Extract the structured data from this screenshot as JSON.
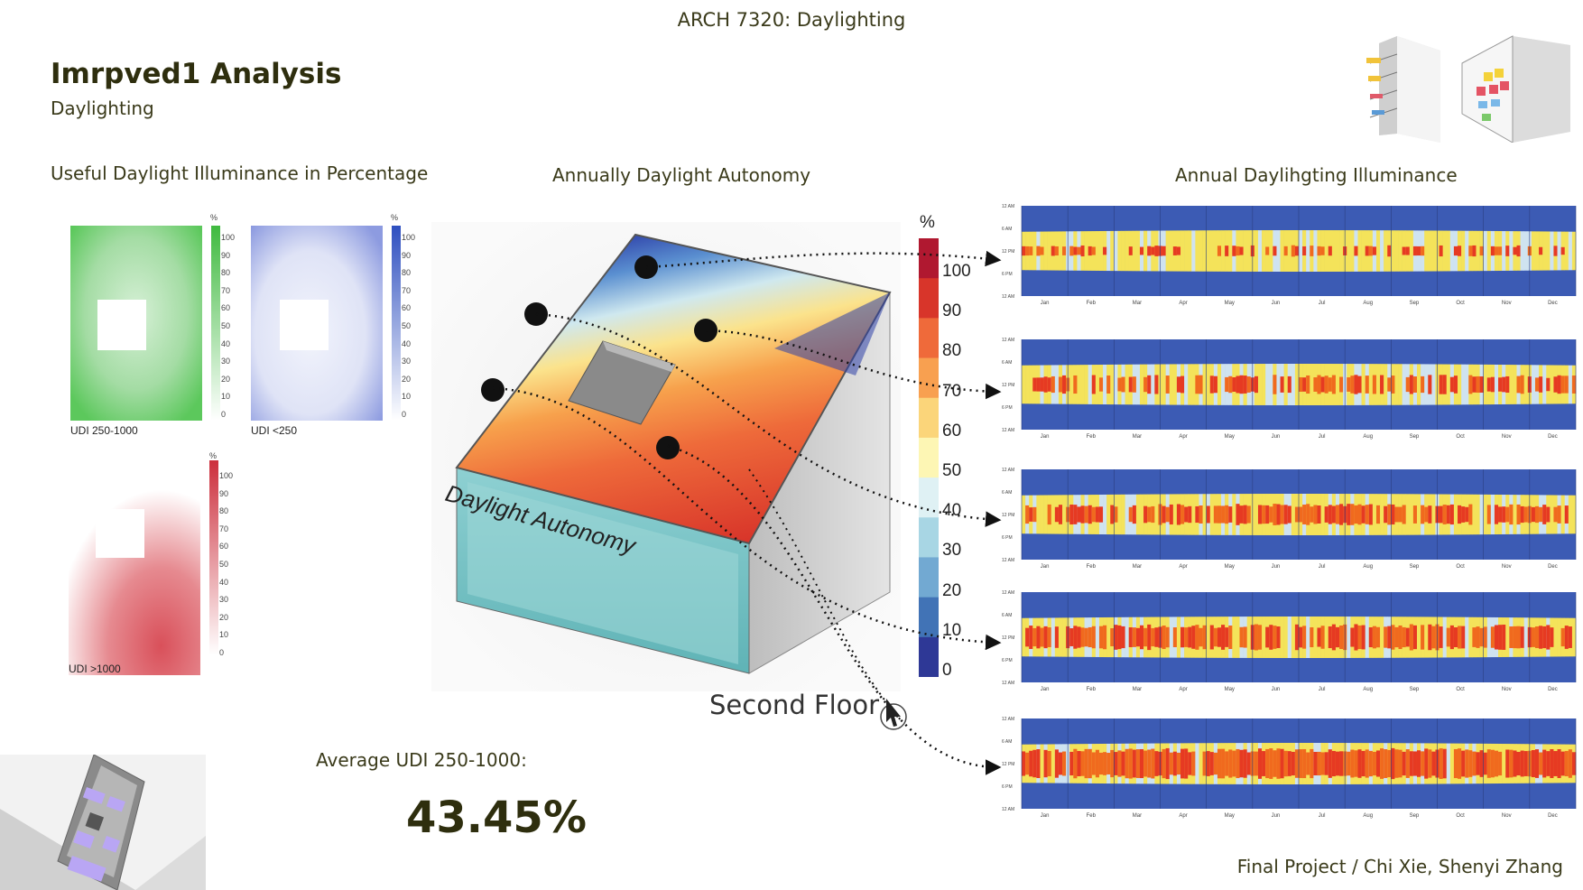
{
  "header": {
    "course": "ARCH 7320: Daylighting",
    "title": "Imrpved1 Analysis",
    "subtitle": "Daylighting"
  },
  "sections": {
    "udi_title": "Useful Daylight Illuminance in Percentage",
    "da_title": "Annually Daylight Autonomy",
    "ill_title": "Annual Daylihgting Illuminance"
  },
  "udi_maps": [
    {
      "label": "UDI 250-1000",
      "unit": "%",
      "color": "#5cc85c"
    },
    {
      "label": "UDI <250",
      "unit": "%",
      "color": "#4a62c8"
    },
    {
      "label": "UDI >1000",
      "unit": "%",
      "color": "#d4525a"
    }
  ],
  "udi_scale": [
    "100",
    "90",
    "80",
    "70",
    "60",
    "50",
    "40",
    "30",
    "20",
    "10",
    "0"
  ],
  "model": {
    "surface_label": "Daylight Autonomy",
    "floor_label": "Second Floor"
  },
  "colorbar": {
    "unit": "%",
    "ticks": [
      "100",
      "90",
      "80",
      "70",
      "60",
      "50",
      "40",
      "30",
      "20",
      "10",
      "0"
    ],
    "colors": [
      "#b01830",
      "#d8352a",
      "#ef6a3a",
      "#f8a050",
      "#fbd57a",
      "#fdf6b4",
      "#dff1f4",
      "#a8d6e4",
      "#72a9d2",
      "#4173b6",
      "#2e3896"
    ]
  },
  "annual_charts": {
    "months": [
      "Jan",
      "Feb",
      "Mar",
      "Apr",
      "May",
      "Jun",
      "Jul",
      "Aug",
      "Sep",
      "Oct",
      "Nov",
      "Dec"
    ],
    "time_ticks": [
      "12 AM",
      "6 AM",
      "12 PM",
      "6 PM",
      "12 AM"
    ],
    "charts": [
      {
        "intensity": 0.35
      },
      {
        "intensity": 0.6
      },
      {
        "intensity": 0.65
      },
      {
        "intensity": 0.8
      },
      {
        "intensity": 0.95
      }
    ]
  },
  "summary": {
    "avg_label": "Average UDI 250-1000:",
    "avg_value": "43.45%"
  },
  "footer": {
    "credits": "Final Project / Chi Xie, Shenyi Zhang"
  }
}
